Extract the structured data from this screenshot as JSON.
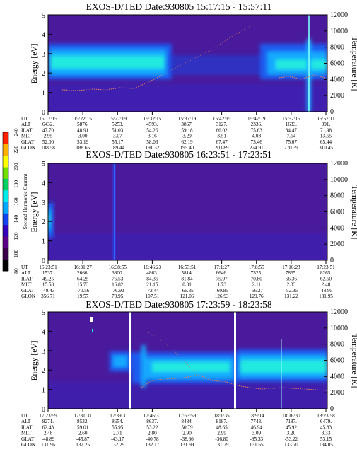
{
  "colorbar": {
    "label": "Second Harmonic Current",
    "ticks": [
      "80",
      "100",
      "120",
      "140",
      "160",
      "180",
      "200",
      "220",
      "240"
    ],
    "colors": [
      "#000000",
      "#3a0048",
      "#5d0088",
      "#3300bb",
      "#1144ee",
      "#00a8ff",
      "#00eaea",
      "#00d060",
      "#70e000",
      "#ffff00",
      "#ffb000",
      "#ff2000"
    ]
  },
  "chart_data": [
    {
      "type": "heatmap",
      "title": "EXOS-D/TED   Date:930805  15:17:15 - 15:57:11",
      "ylabel": "Energy [eV]",
      "ylabel_right": "Temperature [K]",
      "ylim": [
        0,
        5
      ],
      "yticks": [
        "0",
        "1",
        "2",
        "3",
        "4",
        "5"
      ],
      "y2ticks": [
        "0",
        "2000",
        "4000",
        "6000",
        "8000",
        "10000",
        "12000"
      ],
      "table": {
        "row_labels": [
          "UT",
          "ALT",
          "ILAT",
          "MLT",
          "GLAT",
          "GLON"
        ],
        "columns": [
          [
            "15:17:15",
            "6432.",
            "47.70",
            "2.95",
            "52.00",
            "188.58"
          ],
          [
            "15:22:15",
            "5876.",
            "48.91",
            "3.00",
            "53.19",
            "188.65"
          ],
          [
            "15:27:19",
            "5253.",
            "51.03",
            "3.07",
            "55.17",
            "189.44"
          ],
          [
            "15:32:15",
            "4593.",
            "54.26",
            "3.16",
            "58.03",
            "191.32"
          ],
          [
            "15:37:19",
            "3867.",
            "59.18",
            "3.29",
            "62.19",
            "195.40"
          ],
          [
            "15:42:15",
            "3127.",
            "66.02",
            "3.51",
            "67.47",
            "203.89"
          ],
          [
            "15:47:19",
            "2336.",
            "75.63",
            "4.08",
            "73.46",
            "224.91"
          ],
          [
            "15:52:15",
            "1633.",
            "84.47",
            "7.64",
            "75.07",
            "270.39"
          ],
          [
            "15:57:11",
            "991.",
            "71.98",
            "13.55",
            "65.44",
            "310.45"
          ]
        ]
      }
    },
    {
      "type": "heatmap",
      "title": "EXOS-D/TED   Date:930805  16:23:51 - 17:23:51",
      "ylabel": "Energy [eV]",
      "ylabel_right": "Temperature [K]",
      "ylim": [
        0,
        5
      ],
      "yticks": [
        "0",
        "1",
        "2",
        "3",
        "4",
        "5"
      ],
      "y2ticks": [
        "0",
        "2000",
        "4000",
        "6000",
        "8000",
        "10000",
        "12000"
      ],
      "table": {
        "row_labels": [
          "UT",
          "ALT",
          "ILAT",
          "MLT",
          "GLAT",
          "GLON"
        ],
        "columns": [
          [
            "16:23:51",
            "1537.",
            "49.25",
            "15.58",
            "-49.43",
            "356.71"
          ],
          [
            "16:31:27",
            "2666.",
            "64.25",
            "15.73",
            "-70.56",
            "19.57"
          ],
          [
            "16:38:55",
            "3800.",
            "76.53",
            "16.82",
            "-76.92",
            "70.95"
          ],
          [
            "16:46:23",
            "4863.",
            "84.36",
            "21.15",
            "-72.44",
            "107.51"
          ],
          [
            "16:53:51",
            "5814.",
            "81.84",
            "0.81",
            "-66.35",
            "121.06"
          ],
          [
            "17:1:27",
            "6646.",
            "75.97",
            "1.73",
            "-60.85",
            "126.93"
          ],
          [
            "17:8:55",
            "7325.",
            "70.80",
            "2.11",
            "-56.27",
            "129.76"
          ],
          [
            "17:16:23",
            "7865.",
            "66.36",
            "2.33",
            "-52.35",
            "131.22"
          ],
          [
            "17:23:51",
            "8265.",
            "62.50",
            "2.48",
            "-48.95",
            "131.95"
          ]
        ]
      }
    },
    {
      "type": "heatmap",
      "title": "EXOS-D/TED   Date:930805  17:23:59 - 18:23:58",
      "ylabel": "Energy [eV]",
      "ylabel_right": "Temperature [K]",
      "ylim": [
        0,
        5
      ],
      "yticks": [
        "0",
        "1",
        "2",
        "3",
        "4",
        "5"
      ],
      "y2ticks": [
        "0",
        "2000",
        "4000",
        "6000",
        "8000",
        "10000",
        "12000"
      ],
      "table": {
        "row_labels": [
          "UT",
          "ALT",
          "ILAT",
          "MLT",
          "GLAT",
          "GLON"
        ],
        "columns": [
          [
            "17:23:59",
            "8271.",
            "62.43",
            "2.48",
            "-48.89",
            "131.96"
          ],
          [
            "17:31:31",
            "8532.",
            "59.01",
            "2.60",
            "-45.87",
            "132.25"
          ],
          [
            "17:39:3",
            "8654.",
            "55.95",
            "2.71",
            "-43.17",
            "132.29"
          ],
          [
            "17:46:31",
            "8637.",
            "53.22",
            "2.80",
            "-40.78",
            "132.17"
          ],
          [
            "17:53:59",
            "8484.",
            "50.79",
            "2.90",
            "-38.66",
            "131.99"
          ],
          [
            "18:1:35",
            "8187.",
            "48.65",
            "2.99",
            "-36.80",
            "131.79"
          ],
          [
            "18:9:14",
            "7743.",
            "46.94",
            "3.09",
            "-35.33",
            "131.65"
          ],
          [
            "18:16:30",
            "7187.",
            "45.92",
            "3.20",
            "-53.22",
            "133.70"
          ],
          [
            "18:23:58",
            "6479.",
            "45.83",
            "3.33",
            "53.15",
            "134.05"
          ]
        ]
      }
    }
  ]
}
